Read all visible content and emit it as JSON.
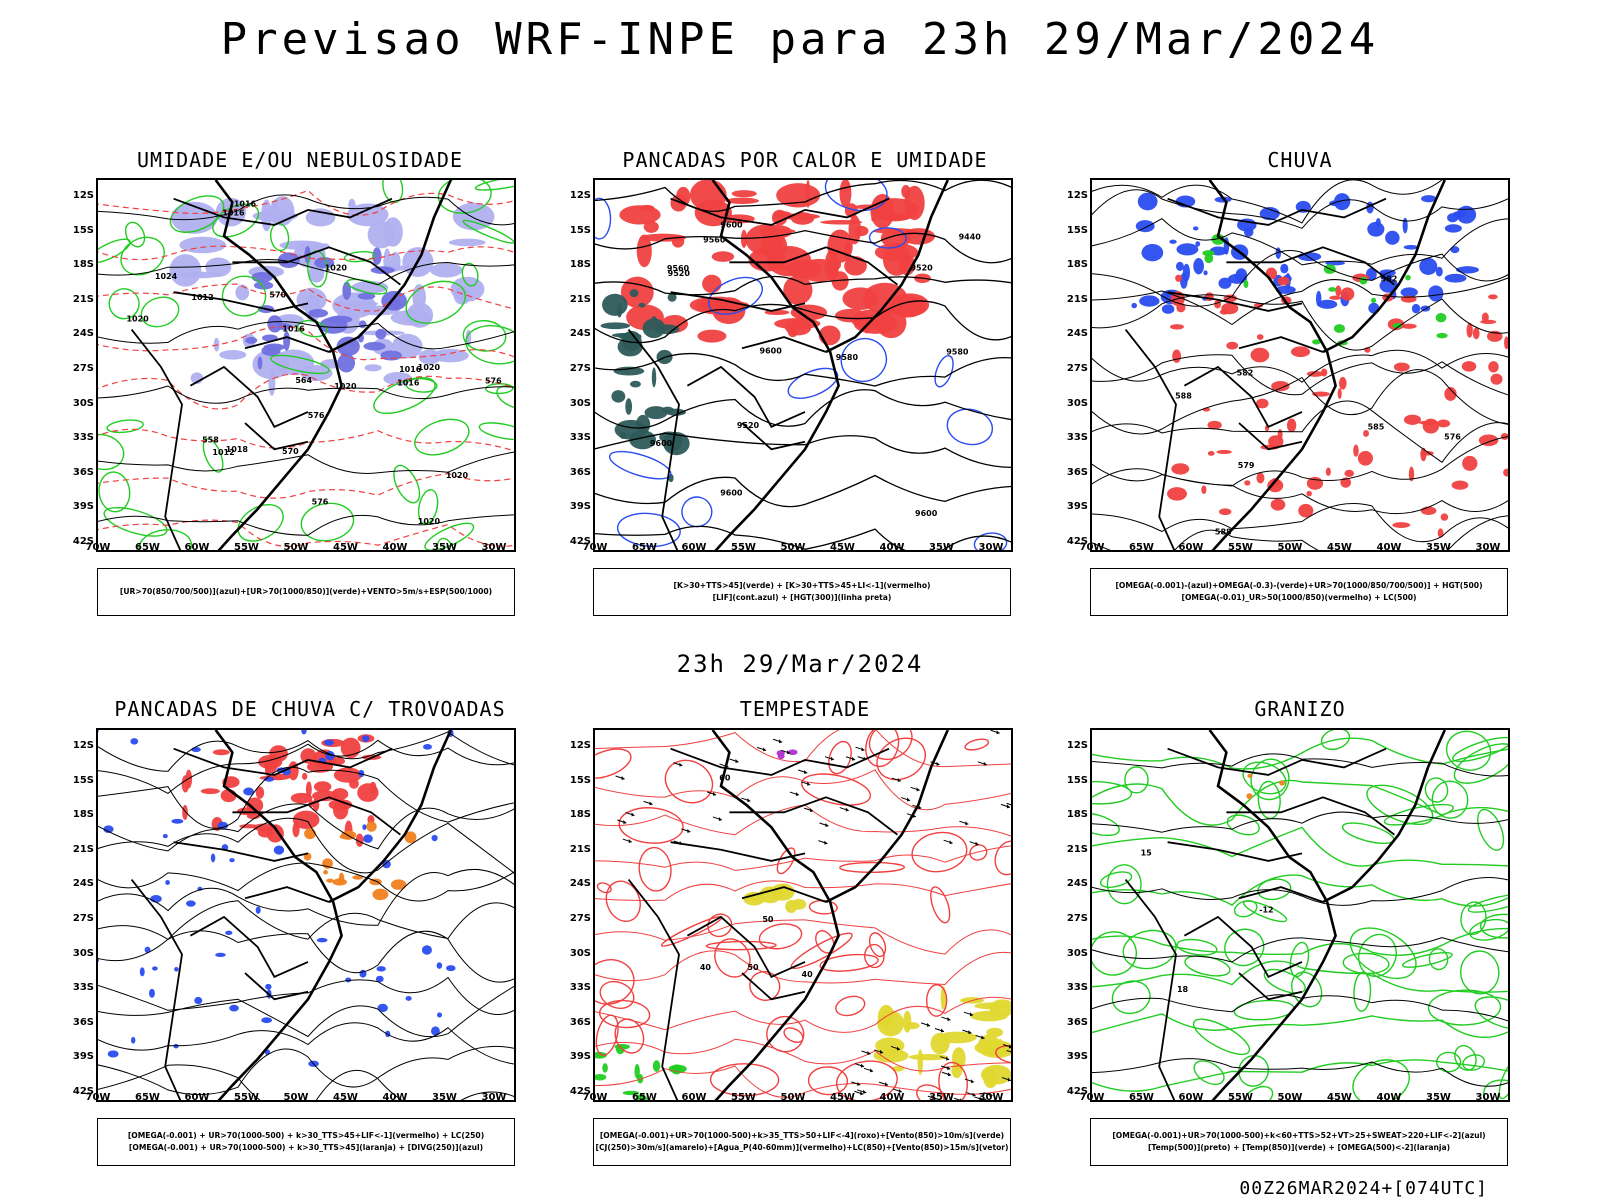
{
  "title": "Previsao WRF-INPE  para 23h 29/Mar/2024",
  "subtitle": "23h 29/Mar/2024",
  "footer": "00Z26MAR2024+[074UTC]",
  "lat_labels": [
    "12S",
    "15S",
    "18S",
    "21S",
    "24S",
    "27S",
    "30S",
    "33S",
    "36S",
    "39S",
    "42S"
  ],
  "lon_labels": [
    "70W",
    "65W",
    "60W",
    "55W",
    "50W",
    "45W",
    "40W",
    "35W",
    "30W"
  ],
  "colors": {
    "red": "#f04040",
    "blue": "#2a4cf0",
    "green": "#22cc22",
    "lavender": "#b0b0f0",
    "darkteal": "#2e5a5a",
    "yellow": "#e0d830",
    "orange": "#f08020",
    "purple": "#b030d0"
  },
  "panels": [
    {
      "title": "UMIDADE E/OU NEBULOSIDADE",
      "legend": [
        "[UR>70(850/700/500)](azul)+[UR>70(1000/850)](verde)+VENTO>5m/s+ESP(500/1000)"
      ],
      "labels": [
        "1012",
        "1024",
        "1016",
        "1016",
        "1018",
        "1020",
        "1020",
        "1020",
        "1020",
        "1016",
        "1016",
        "1016",
        "1020",
        "1020",
        "576",
        "576",
        "570",
        "564",
        "558",
        "570",
        "576",
        "1012"
      ]
    },
    {
      "title": "PANCADAS POR CALOR E UMIDADE",
      "legend": [
        "[K>30+TTS>45](verde)  +  [K>30+TTS>45+LI<-1](vermelho)",
        "[LIF](cont.azul)  +  [HGT(300)](linha preta)"
      ],
      "labels": [
        "9560",
        "9580",
        "9600",
        "9600",
        "9600",
        "9520",
        "9580",
        "9600",
        "9520",
        "9440",
        "9520",
        "9600",
        "9560"
      ]
    },
    {
      "title": "CHUVA",
      "legend": [
        "[OMEGA(-0.001)-(azul)+OMEGA(-0.3)-(verde)+UR>70(1000/850/700/500)]  +  HGT(500)",
        "[OMEGA(-0.01)_UR>50(1000/850)(vermelho)  +  LC(500)"
      ],
      "labels": [
        "588",
        "585",
        "582",
        "579",
        "576",
        "582",
        "588"
      ]
    },
    {
      "title": "PANCADAS DE CHUVA C/ TROVOADAS",
      "legend": [
        "[OMEGA(-0.001)  +  UR>70(1000-500)  +  k>30_TTS>45+LIF<-1](vermelho)  +  LC(250)",
        "[OMEGA(-0.001)  +  UR>70(1000-500)  +  k>30_TTS>45](laranja)  +  [DIVG(250)](azul)"
      ],
      "labels": []
    },
    {
      "title": "TEMPESTADE",
      "legend": [
        "[OMEGA(-0.001)+UR>70(1000-500)+k>35_TTS>50+LIF<-4](roxo)+[Vento(850)>10m/s](verde)",
        "[CJ(250)>30m/s](amarelo)+[Agua_P(40-60mm)](vermelho)+LC(850)+[Vento(850)>15m/s](vetor)"
      ],
      "labels": [
        "50",
        "60",
        "40",
        "50",
        "40"
      ]
    },
    {
      "title": "GRANIZO",
      "legend": [
        "[OMEGA(-0.001)+UR>70(1000-500)+k<60+TTS>52+VT>25+SWEAT>220+LIF<-2](azul)",
        "[Temp(500)](preto)  +  [Temp(850)](verde)  +  [OMEGA(500)<-2](laranja)"
      ],
      "labels": [
        "-12",
        "15",
        "18"
      ]
    }
  ]
}
